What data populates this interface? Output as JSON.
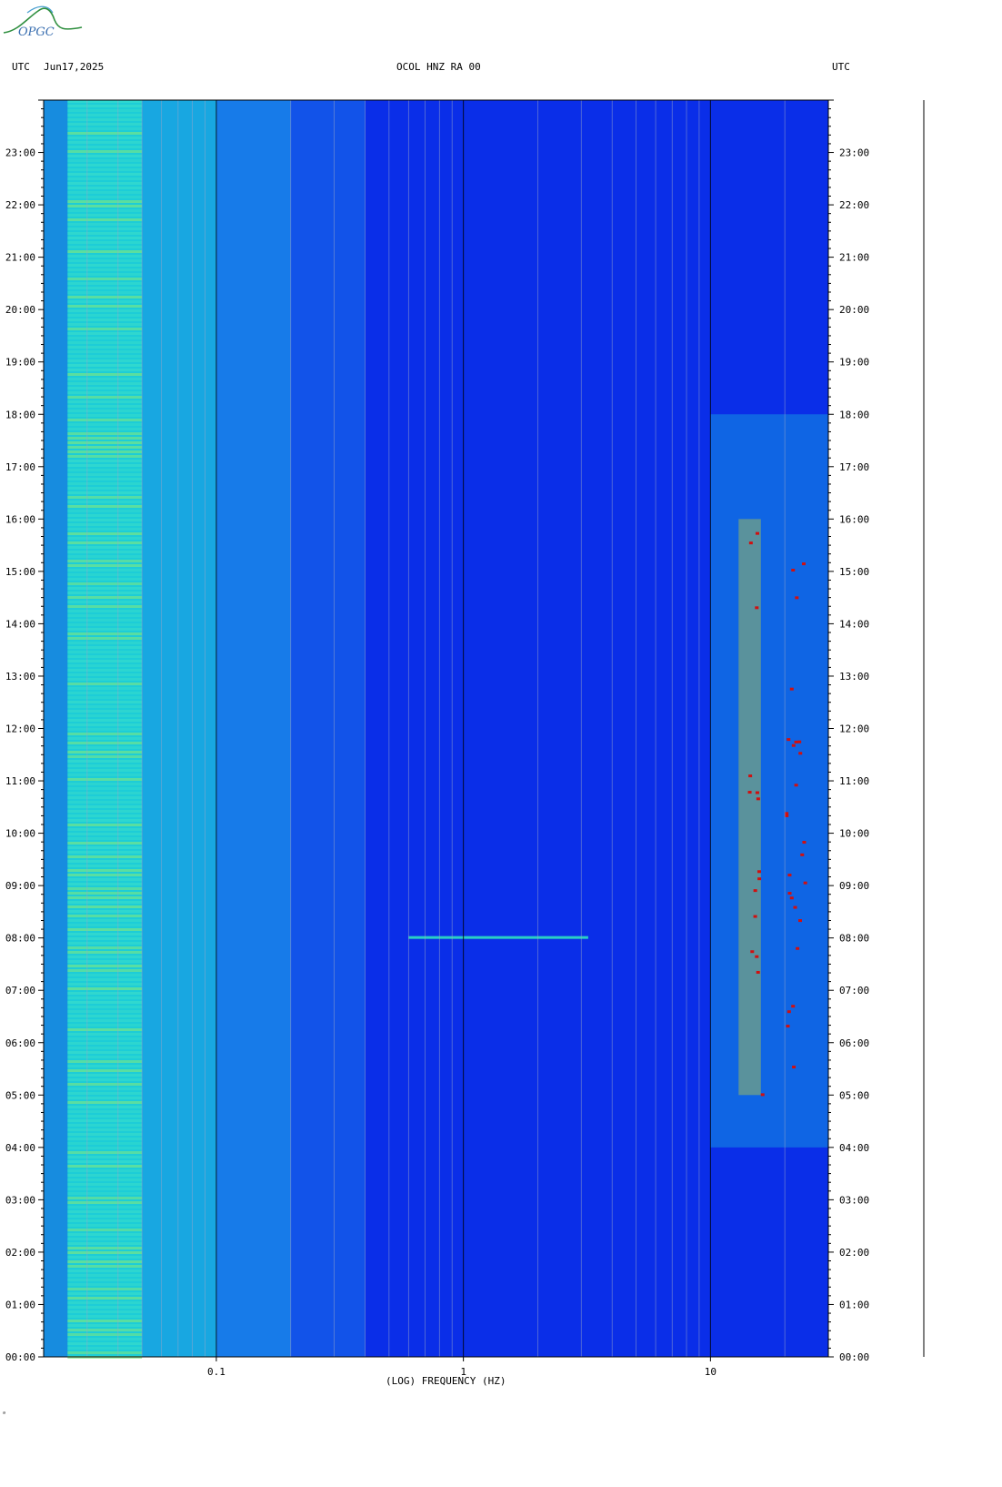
{
  "header": {
    "left_tz": "UTC",
    "date": "Jun17,2025",
    "station": "OCOL HNZ RA 00",
    "right_tz": "UTC"
  },
  "logo": {
    "text": "OPGC"
  },
  "footer_mark": "ᵃ",
  "chart_data": {
    "type": "heatmap",
    "title": "OCOL HNZ RA 00",
    "xlabel": "(LOG) FREQUENCY (HZ)",
    "ylabel": "UTC",
    "x_scale": "log",
    "xlim": [
      0.02,
      30
    ],
    "ylim_hours": [
      0,
      24
    ],
    "x_ticks": [
      {
        "value": 0.1,
        "label": "0.1"
      },
      {
        "value": 1,
        "label": "1"
      },
      {
        "value": 10,
        "label": "10"
      }
    ],
    "y_ticks_hours": [
      "00:00",
      "01:00",
      "02:00",
      "03:00",
      "04:00",
      "05:00",
      "06:00",
      "07:00",
      "08:00",
      "09:00",
      "10:00",
      "11:00",
      "12:00",
      "13:00",
      "14:00",
      "15:00",
      "16:00",
      "17:00",
      "18:00",
      "19:00",
      "20:00",
      "21:00",
      "22:00",
      "23:00"
    ],
    "colors": {
      "background": "#0a2ee8",
      "low_freq_band": "#1fd6d6",
      "mid": "#1a7fe8",
      "high_energy": "#e8e817",
      "peak": "#d01010"
    }
  }
}
